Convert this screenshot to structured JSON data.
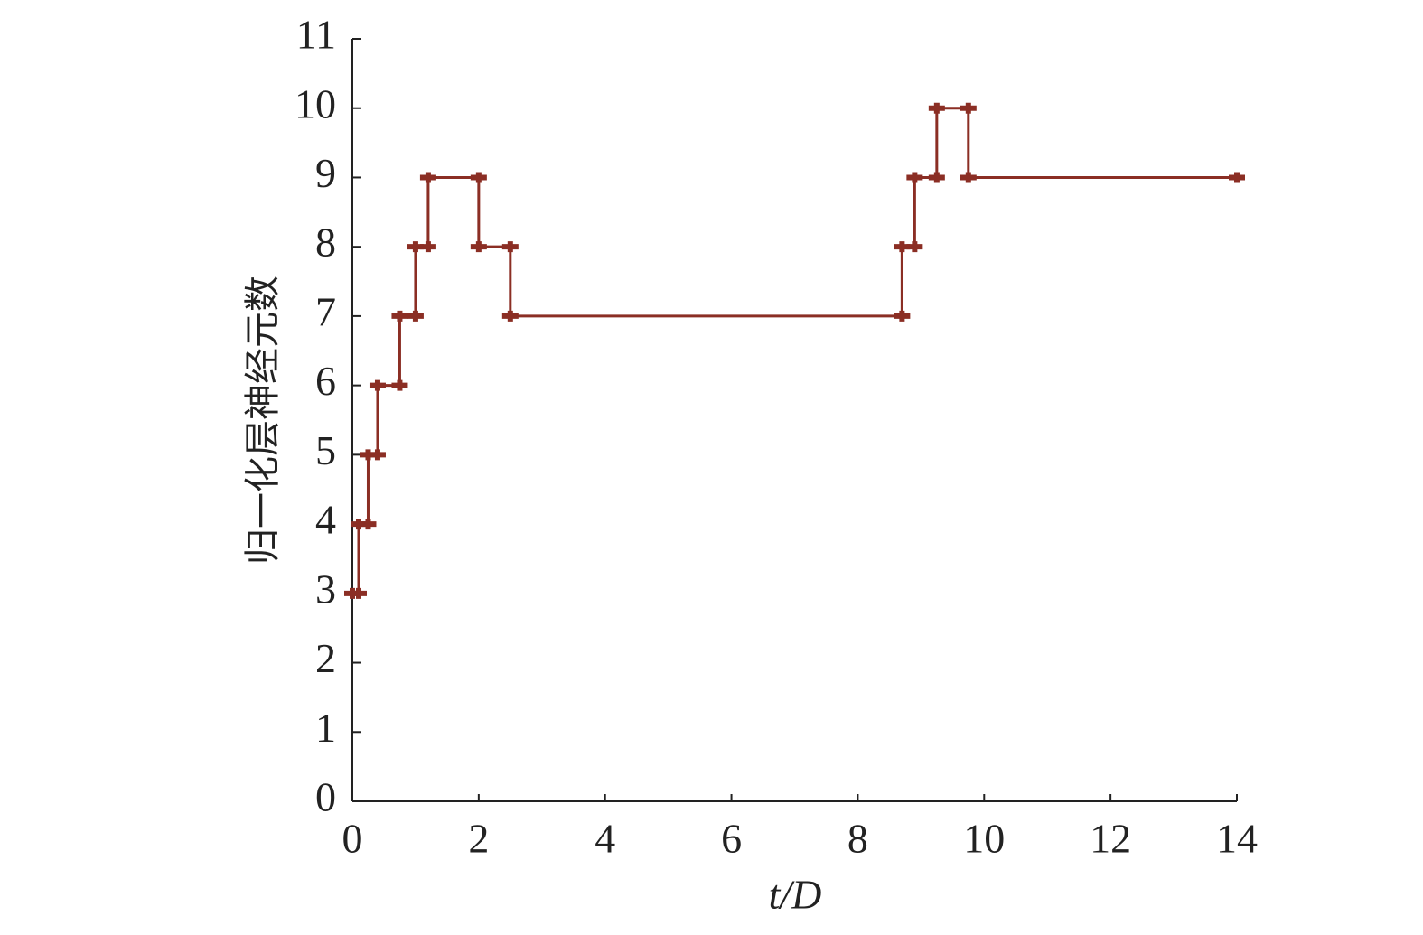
{
  "chart_data": {
    "type": "step",
    "x_label": "t/D",
    "y_label": "归一化层神经元数",
    "series": [
      {
        "color": "#8b2e24",
        "x": [
          0,
          0.1,
          0.1,
          0.25,
          0.25,
          0.4,
          0.4,
          0.75,
          0.75,
          1.0,
          1.0,
          1.2,
          1.2,
          2.0,
          2.0,
          2.5,
          2.5,
          8.7,
          8.7,
          8.9,
          8.9,
          9.25,
          9.25,
          9.75,
          9.75,
          14
        ],
        "values": [
          3,
          3,
          4,
          4,
          5,
          5,
          6,
          6,
          7,
          7,
          8,
          8,
          9,
          9,
          8,
          8,
          7,
          7,
          8,
          8,
          9,
          9,
          10,
          10,
          9,
          9
        ]
      }
    ],
    "xlim": [
      0,
      14
    ],
    "xticks": [
      0,
      2,
      4,
      6,
      8,
      10,
      12,
      14
    ],
    "ylim": [
      0,
      11
    ],
    "yticks": [
      0,
      1,
      2,
      3,
      4,
      5,
      6,
      7,
      8,
      9,
      10,
      11
    ],
    "grid": false
  }
}
